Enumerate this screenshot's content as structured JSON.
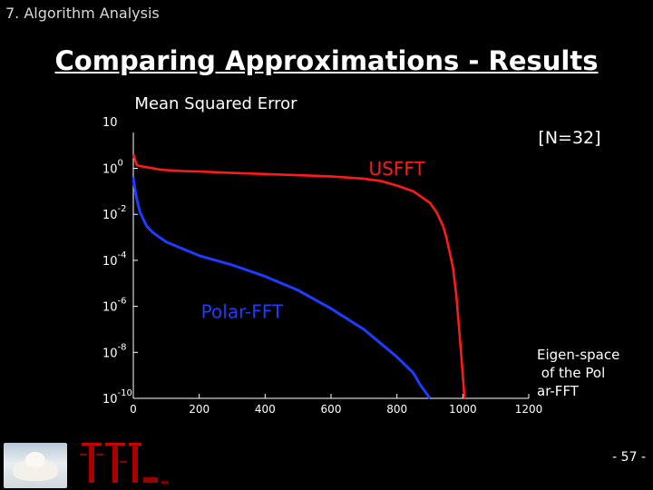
{
  "header": {
    "section": "7. Algorithm Analysis"
  },
  "slide": {
    "title": "Comparing Approximations - Results",
    "page": "- 57 -"
  },
  "colors": {
    "usfft": "#ff1a1a",
    "polar": "#1e3cff",
    "axis": "#ffffff"
  },
  "chart_data": {
    "type": "line",
    "title": "Mean Squared Error",
    "corner_label": "[N=32]",
    "xlabel": "",
    "ylabel": "",
    "xlim": [
      0,
      1200
    ],
    "ylim_log10": [
      -10,
      1
    ],
    "y_scale": "log",
    "x_ticks": [
      0,
      200,
      400,
      600,
      800,
      1000,
      1200
    ],
    "y_ticks": [
      {
        "base": "10",
        "exp": "0",
        "v": 0
      },
      {
        "base": "10",
        "exp": "-2",
        "v": -2
      },
      {
        "base": "10",
        "exp": "-4",
        "v": -4
      },
      {
        "base": "10",
        "exp": "-6",
        "v": -6
      },
      {
        "base": "10",
        "exp": "-8",
        "v": -8
      },
      {
        "base": "10",
        "exp": "-10",
        "v": -10
      }
    ],
    "y_top_label": "10",
    "grid": false,
    "series": [
      {
        "name": "USFFT",
        "x": [
          0,
          5,
          10,
          20,
          40,
          60,
          80,
          100,
          150,
          200,
          300,
          400,
          500,
          600,
          700,
          750,
          800,
          850,
          870,
          900,
          920,
          940,
          950,
          970,
          980,
          990,
          1000,
          1005
        ],
        "y": [
          0.6,
          0.4,
          0.15,
          0.1,
          0.05,
          0.0,
          -0.05,
          -0.08,
          -0.12,
          -0.14,
          -0.2,
          -0.25,
          -0.3,
          -0.35,
          -0.45,
          -0.55,
          -0.75,
          -1.0,
          -1.2,
          -1.5,
          -1.9,
          -2.5,
          -3.0,
          -4.3,
          -5.5,
          -7.2,
          -9.0,
          -10.0
        ]
      },
      {
        "name": "Polar-FFT",
        "x": [
          0,
          5,
          10,
          20,
          40,
          60,
          80,
          100,
          150,
          200,
          300,
          400,
          500,
          600,
          700,
          750,
          800,
          850,
          870,
          890,
          900
        ],
        "y": [
          -0.4,
          -0.9,
          -1.3,
          -1.9,
          -2.5,
          -2.8,
          -3.0,
          -3.2,
          -3.5,
          -3.8,
          -4.2,
          -4.7,
          -5.3,
          -6.1,
          -7.0,
          -7.6,
          -8.2,
          -8.9,
          -9.4,
          -9.8,
          -10.0
        ]
      }
    ],
    "annotations": [
      {
        "text": "USFFT",
        "x": 800,
        "y": -0.3
      },
      {
        "text": "Polar-FFT",
        "x": 330,
        "y": -6.5
      },
      {
        "text": "Eigen-space of the Polar-FFT",
        "x": 1240,
        "y": -8.3
      }
    ]
  }
}
